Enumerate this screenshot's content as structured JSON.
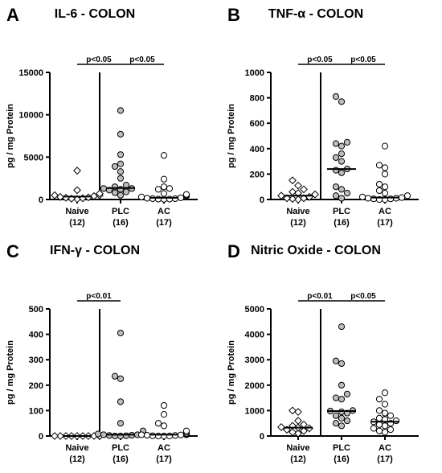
{
  "chart_data": [
    {
      "panel_letter": "A",
      "type": "scatter",
      "title": "IL-6 - COLON",
      "ylabel": "pg / mg Protein",
      "ylim": [
        0,
        15000
      ],
      "yticks": [
        "0",
        "5000",
        "10000",
        "15000"
      ],
      "categories": [
        {
          "label": "Naive",
          "n": "(12)"
        },
        {
          "label": "PLC",
          "n": "(16)"
        },
        {
          "label": "AC",
          "n": "(17)"
        }
      ],
      "series": [
        {
          "category": "Naive",
          "marker": "diamond",
          "fill": "#ffffff",
          "median": 350,
          "values": [
            3400,
            1100,
            700,
            500,
            500,
            400,
            300,
            250,
            200,
            150,
            100,
            50
          ]
        },
        {
          "category": "PLC",
          "marker": "circle",
          "fill": "#bdbdbd",
          "median": 1350,
          "values": [
            10500,
            7700,
            5300,
            4200,
            3900,
            3300,
            2500,
            1700,
            1500,
            1300,
            1300,
            1200,
            1100,
            900,
            800,
            500
          ]
        },
        {
          "category": "AC",
          "marker": "circle",
          "fill": "#ffffff",
          "median": 200,
          "values": [
            5200,
            2400,
            1500,
            1300,
            1200,
            700,
            600,
            500,
            400,
            300,
            200,
            150,
            100,
            100,
            50,
            50,
            30
          ]
        }
      ],
      "significance": [
        {
          "from": "Naive",
          "to": "PLC",
          "label": "p<0.05"
        },
        {
          "from": "PLC",
          "to": "AC",
          "label": "p<0.05"
        }
      ]
    },
    {
      "panel_letter": "B",
      "type": "scatter",
      "title": "TNF-α - COLON",
      "ylabel": "pg / mg Protein",
      "ylim": [
        0,
        1000
      ],
      "yticks": [
        "0",
        "200",
        "400",
        "600",
        "800",
        "1000"
      ],
      "categories": [
        {
          "label": "Naive",
          "n": "(12)"
        },
        {
          "label": "PLC",
          "n": "(16)"
        },
        {
          "label": "AC",
          "n": "(17)"
        }
      ],
      "series": [
        {
          "category": "Naive",
          "marker": "diamond",
          "fill": "#ffffff",
          "median": 30,
          "values": [
            150,
            110,
            80,
            60,
            50,
            40,
            30,
            20,
            10,
            10,
            5,
            0
          ]
        },
        {
          "category": "PLC",
          "marker": "circle",
          "fill": "#bdbdbd",
          "median": 240,
          "values": [
            810,
            770,
            440,
            420,
            450,
            360,
            330,
            300,
            240,
            230,
            210,
            100,
            80,
            50,
            30,
            10
          ]
        },
        {
          "category": "AC",
          "marker": "circle",
          "fill": "#ffffff",
          "median": 15,
          "values": [
            420,
            270,
            250,
            200,
            120,
            100,
            70,
            50,
            30,
            20,
            15,
            10,
            10,
            5,
            5,
            0,
            0
          ]
        }
      ],
      "significance": [
        {
          "from": "Naive",
          "to": "PLC",
          "label": "p<0.05"
        },
        {
          "from": "PLC",
          "to": "AC",
          "label": "p<0.05"
        }
      ]
    },
    {
      "panel_letter": "C",
      "type": "scatter",
      "title": "IFN-γ - COLON",
      "ylabel": "pg / mg Protein",
      "ylim": [
        0,
        500
      ],
      "yticks": [
        "0",
        "100",
        "200",
        "300",
        "400",
        "500"
      ],
      "categories": [
        {
          "label": "Naive",
          "n": "(12)"
        },
        {
          "label": "PLC",
          "n": "(16)"
        },
        {
          "label": "AC",
          "n": "(17)"
        }
      ],
      "series": [
        {
          "category": "Naive",
          "marker": "diamond",
          "fill": "#ffffff",
          "median": 0,
          "values": [
            0,
            0,
            0,
            0,
            0,
            0,
            0,
            0,
            0,
            0,
            0,
            0
          ]
        },
        {
          "category": "PLC",
          "marker": "circle",
          "fill": "#bdbdbd",
          "median": 5,
          "values": [
            405,
            235,
            225,
            135,
            50,
            20,
            15,
            10,
            8,
            5,
            5,
            3,
            2,
            1,
            0,
            0
          ]
        },
        {
          "category": "AC",
          "marker": "circle",
          "fill": "#ffffff",
          "median": 5,
          "values": [
            120,
            85,
            50,
            40,
            20,
            15,
            10,
            8,
            5,
            5,
            4,
            3,
            2,
            1,
            0,
            0,
            0
          ]
        }
      ],
      "significance": [
        {
          "from": "Naive",
          "to": "PLC",
          "label": "p<0.01"
        }
      ]
    },
    {
      "panel_letter": "D",
      "type": "scatter",
      "title": "Nitric Oxide - COLON",
      "ylabel": "pg / mg Protein",
      "ylim": [
        0,
        5000
      ],
      "yticks": [
        "0",
        "1000",
        "2000",
        "3000",
        "4000",
        "5000"
      ],
      "categories": [
        {
          "label": "Naive",
          "n": "(12)"
        },
        {
          "label": "PLC",
          "n": "(16)"
        },
        {
          "label": "AC",
          "n": "(17)"
        }
      ],
      "series": [
        {
          "category": "Naive",
          "marker": "diamond",
          "fill": "#ffffff",
          "median": 330,
          "values": [
            1000,
            950,
            600,
            450,
            400,
            350,
            330,
            300,
            250,
            200,
            150,
            100
          ]
        },
        {
          "category": "PLC",
          "marker": "circle",
          "fill": "#bdbdbd",
          "median": 980,
          "values": [
            4300,
            2950,
            2850,
            2000,
            1650,
            1500,
            1450,
            1000,
            980,
            950,
            900,
            800,
            700,
            600,
            500,
            400
          ]
        },
        {
          "category": "AC",
          "marker": "circle",
          "fill": "#ffffff",
          "median": 560,
          "values": [
            1700,
            1450,
            1250,
            1000,
            900,
            800,
            700,
            650,
            600,
            560,
            500,
            450,
            400,
            300,
            250,
            200,
            150
          ]
        }
      ],
      "significance": [
        {
          "from": "Naive",
          "to": "PLC",
          "label": "p<0.01"
        },
        {
          "from": "PLC",
          "to": "AC",
          "label": "p<0.05"
        }
      ]
    }
  ]
}
